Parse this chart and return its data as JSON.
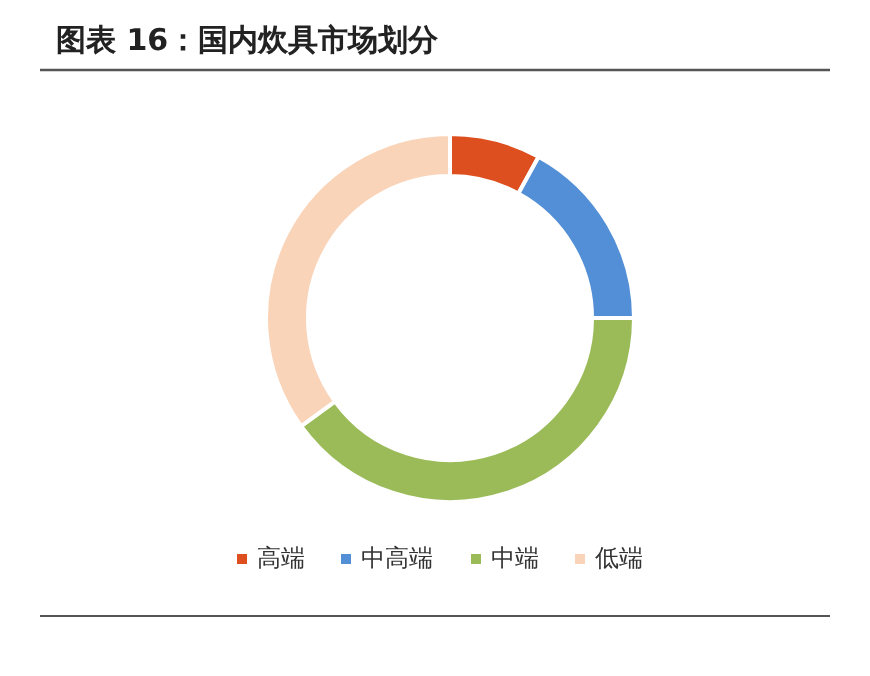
{
  "chart_data": {
    "type": "donut",
    "title": "图表 16：国内炊具市场划分",
    "categories": [
      "高端",
      "中高端",
      "中端",
      "低端"
    ],
    "values": [
      8,
      17,
      40,
      35
    ],
    "colors": [
      "#dd4f1e",
      "#528fd6",
      "#9bbb59",
      "#fad4b8"
    ],
    "legend": "bottom"
  }
}
